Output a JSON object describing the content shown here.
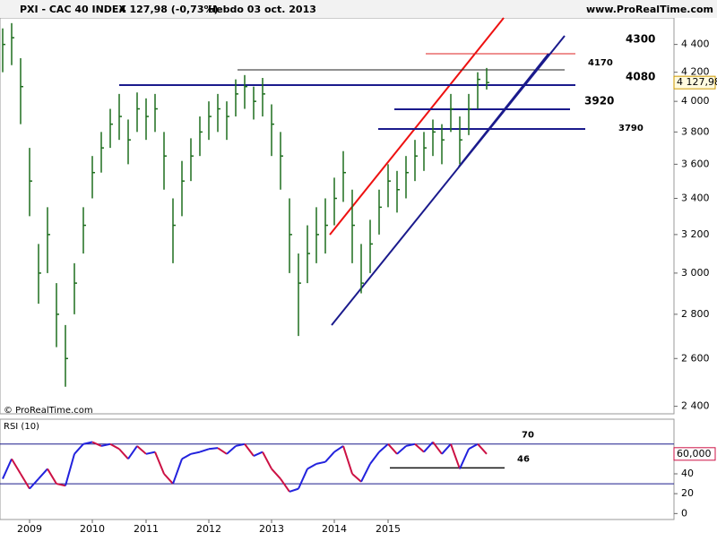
{
  "header": {
    "symbol": "PXI - CAC 40 INDEX",
    "quote": "4 127,98 (-0,73%)",
    "period": "Hebdo  03 oct. 2013",
    "site": "www.ProRealTime.com"
  },
  "chart_data": [
    {
      "type": "ohlc",
      "copyright": "© ProRealTime.com",
      "categories": [
        null,
        null,
        null,
        "2009",
        null,
        null,
        null,
        null,
        null,
        null,
        "2010",
        null,
        null,
        null,
        null,
        null,
        "2011",
        null,
        null,
        null,
        null,
        null,
        null,
        "2012",
        null,
        null,
        null,
        null,
        null,
        null,
        "2013",
        null,
        null,
        null,
        null,
        null,
        null,
        "2014",
        null,
        null,
        null,
        null,
        null,
        "2015",
        null,
        null,
        null,
        null,
        null,
        null,
        null,
        null,
        null,
        null,
        null
      ],
      "high": [
        4520,
        4560,
        4300,
        3700,
        3150,
        3350,
        2950,
        2750,
        3050,
        3350,
        3650,
        3800,
        3950,
        4050,
        3880,
        4060,
        4020,
        4050,
        3800,
        3400,
        3620,
        3760,
        3900,
        4000,
        4050,
        4000,
        4150,
        4180,
        4100,
        4160,
        3980,
        3800,
        3400,
        3100,
        3250,
        3350,
        3400,
        3520,
        3680,
        3450,
        3150,
        3280,
        3450,
        3600,
        3560,
        3650,
        3750,
        3800,
        3880,
        3850,
        4050,
        3900,
        4050,
        4200,
        4230
      ],
      "low": [
        4200,
        4250,
        3850,
        3300,
        2850,
        3000,
        2650,
        2480,
        2800,
        3100,
        3400,
        3550,
        3700,
        3750,
        3600,
        3800,
        3750,
        3800,
        3450,
        3050,
        3300,
        3500,
        3650,
        3750,
        3800,
        3750,
        3900,
        3950,
        3880,
        3900,
        3650,
        3450,
        3000,
        2700,
        2950,
        3050,
        3100,
        3250,
        3380,
        3050,
        2900,
        3000,
        3200,
        3350,
        3320,
        3400,
        3500,
        3560,
        3650,
        3600,
        3800,
        3600,
        3780,
        3950,
        4080
      ],
      "close": [
        4400,
        4450,
        4100,
        3500,
        3000,
        3200,
        2800,
        2600,
        2950,
        3250,
        3550,
        3700,
        3850,
        3900,
        3750,
        3950,
        3900,
        3950,
        3650,
        3250,
        3500,
        3650,
        3800,
        3900,
        3950,
        3900,
        4050,
        4100,
        4000,
        4050,
        3850,
        3650,
        3200,
        2950,
        3100,
        3200,
        3250,
        3400,
        3550,
        3250,
        2950,
        3150,
        3350,
        3500,
        3450,
        3550,
        3650,
        3700,
        3800,
        3750,
        3950,
        3750,
        3950,
        4150,
        4127.98
      ],
      "color": "#1d6e1d",
      "last_label": "4 127,98",
      "ylim": [
        2370,
        4600
      ],
      "log": true,
      "yticks": [
        {
          "value": 2400,
          "label": "2 400"
        },
        {
          "value": 2600,
          "label": "2 600"
        },
        {
          "value": 2800,
          "label": "2 800"
        },
        {
          "value": 3000,
          "label": "3 000"
        },
        {
          "value": 3200,
          "label": "3 200"
        },
        {
          "value": 3400,
          "label": "3 400"
        },
        {
          "value": 3600,
          "label": "3 600"
        },
        {
          "value": 3800,
          "label": "3 800"
        },
        {
          "value": 4000,
          "label": "4 000"
        },
        {
          "value": 4200,
          "label": "4 200"
        },
        {
          "value": 4400,
          "label": "4 400"
        }
      ],
      "annotations": [
        "4300",
        "4170",
        "4080",
        "3920",
        "3790"
      ]
    },
    {
      "type": "rsi",
      "title": "RSI (10)",
      "values": [
        35,
        55,
        40,
        25,
        35,
        45,
        30,
        28,
        60,
        70,
        72,
        68,
        70,
        65,
        55,
        68,
        60,
        62,
        40,
        30,
        55,
        60,
        62,
        65,
        66,
        60,
        68,
        70,
        58,
        62,
        45,
        35,
        22,
        25,
        45,
        50,
        52,
        62,
        68,
        40,
        32,
        50,
        62,
        70,
        60,
        68,
        70,
        62,
        72,
        60,
        70,
        45,
        65,
        70,
        60
      ],
      "last_label": "60,000",
      "ylim": [
        -6,
        95
      ],
      "yticks": [
        0,
        20,
        40,
        60
      ],
      "levels": [
        70,
        30,
        46
      ],
      "level_labels": [
        "70",
        null,
        "46"
      ],
      "up_color": "#2222dd",
      "down_color": "#cc1144"
    }
  ]
}
